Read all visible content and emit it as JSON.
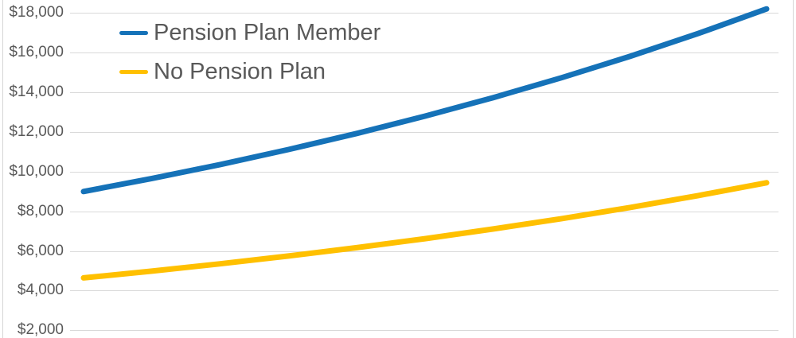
{
  "chart_data": {
    "type": "line",
    "title": "",
    "grid": true,
    "x_axis": {
      "visible": false,
      "note": "no x-axis labels shown; points are evenly spaced samples of the drawn curves"
    },
    "y_axis": {
      "tick_labels": [
        "$18,000",
        "$16,000",
        "$14,000",
        "$12,000",
        "$10,000",
        "$8,000",
        "$6,000",
        "$4,000",
        "$2,000"
      ],
      "tick_values": [
        18000,
        16000,
        14000,
        12000,
        10000,
        8000,
        6000,
        4000,
        2000
      ],
      "gridline_min": 2000,
      "gridline_max": 18000
    },
    "legend": {
      "position": "top-left",
      "entries": [
        "Pension Plan Member",
        "No Pension Plan"
      ]
    },
    "series": [
      {
        "name": "Pension Plan Member",
        "color": "#1572b8",
        "values": [
          9000,
          9656,
          10360,
          11116,
          11927,
          12797,
          13731,
          14733,
          15808,
          16962,
          18200
        ]
      },
      {
        "name": "No Pension Plan",
        "color": "#ffc000",
        "values": [
          4650,
          4991,
          5358,
          5751,
          6173,
          6626,
          7112,
          7634,
          8194,
          8795,
          9440
        ]
      }
    ]
  },
  "colors": {
    "gridline": "#d9d9d9",
    "axis_text": "#595959",
    "legend_text": "#595959",
    "frame_border": "#d6d6d6",
    "background": "#ffffff"
  }
}
